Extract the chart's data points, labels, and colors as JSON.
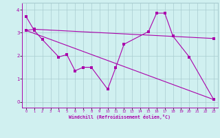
{
  "xlabel": "Windchill (Refroidissement éolien,°C)",
  "background_color": "#d0f0f0",
  "grid_color": "#a8ccd0",
  "line_color": "#aa00aa",
  "series1_x": [
    0,
    1,
    2,
    4,
    5,
    6,
    7,
    8,
    10,
    11,
    12,
    15,
    16,
    17,
    18,
    20,
    23
  ],
  "series1_y": [
    3.7,
    3.1,
    2.7,
    1.95,
    2.05,
    1.35,
    1.5,
    1.5,
    0.55,
    1.5,
    2.5,
    3.05,
    3.85,
    3.85,
    2.85,
    1.95,
    0.1
  ],
  "series2_x": [
    0,
    1,
    23
  ],
  "series2_y": [
    3.1,
    3.15,
    2.75
  ],
  "series3_x": [
    0,
    23
  ],
  "series3_y": [
    3.1,
    0.1
  ],
  "ylim": [
    -0.25,
    4.3
  ],
  "xlim": [
    -0.5,
    23.5
  ],
  "yticks": [
    0,
    1,
    2,
    3,
    4
  ],
  "xticks": [
    0,
    1,
    2,
    3,
    4,
    5,
    6,
    7,
    8,
    9,
    10,
    11,
    12,
    13,
    14,
    15,
    16,
    17,
    18,
    19,
    20,
    21,
    22,
    23
  ]
}
